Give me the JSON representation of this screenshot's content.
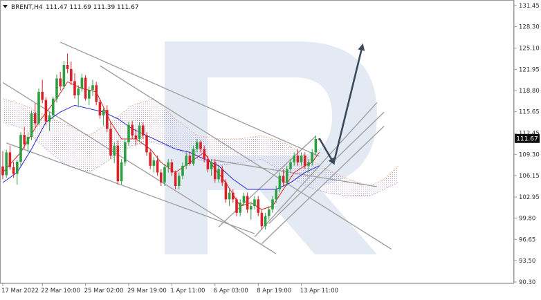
{
  "header": {
    "symbol": "BRENT,H4",
    "quote": "111.47 111.69 111.39 111.67"
  },
  "colors": {
    "bull_candle": "#2e9e43",
    "bear_candle": "#d8232a",
    "tenkan": "#e02020",
    "kijun": "#2424d8",
    "cloud_bear": "#f0a878",
    "cloud_bull": "#b8a0d0",
    "trendline": "#a0a0a0",
    "forecast_arrow": "#3a4a5c",
    "watermark": "#e3eaf4",
    "price_badge": "#0d0d0d"
  },
  "chart_data": {
    "type": "candlestick",
    "y_ticks": [
      "131.45",
      "128.30",
      "125.10",
      "121.95",
      "118.80",
      "115.65",
      "112.45",
      "109.30",
      "106.15",
      "102.95",
      "99.80",
      "96.65",
      "93.50",
      "90.30"
    ],
    "ylim": [
      90.3,
      131.45
    ],
    "x_ticks": [
      {
        "label": "17 Mar 2022",
        "bar": 0
      },
      {
        "label": "22 Mar 10:00",
        "bar": 11
      },
      {
        "label": "25 Mar 02:00",
        "bar": 23
      },
      {
        "label": "29 Mar 19:00",
        "bar": 35
      },
      {
        "label": "1 Apr 11:00",
        "bar": 47
      },
      {
        "label": "6 Apr 03:00",
        "bar": 59
      },
      {
        "label": "8 Apr 19:00",
        "bar": 71
      },
      {
        "label": "13 Apr 11:00",
        "bar": 83
      }
    ],
    "current_price": "111.67",
    "ohlc": [
      [
        107.5,
        109.8,
        105.6,
        106.2
      ],
      [
        106.2,
        110.0,
        105.8,
        109.6
      ],
      [
        109.6,
        110.6,
        107.0,
        107.4
      ],
      [
        107.4,
        108.2,
        105.8,
        106.4
      ],
      [
        106.4,
        108.5,
        104.8,
        108.2
      ],
      [
        108.2,
        112.6,
        107.6,
        112.2
      ],
      [
        112.2,
        113.4,
        110.2,
        110.8
      ],
      [
        110.8,
        112.4,
        109.6,
        111.9
      ],
      [
        111.9,
        115.8,
        111.4,
        115.4
      ],
      [
        115.4,
        116.9,
        113.4,
        113.9
      ],
      [
        113.9,
        119.1,
        113.6,
        118.6
      ],
      [
        118.6,
        120.4,
        116.9,
        117.4
      ],
      [
        117.4,
        117.8,
        113.6,
        114.2
      ],
      [
        114.2,
        115.6,
        112.8,
        115.1
      ],
      [
        115.1,
        117.9,
        114.6,
        117.6
      ],
      [
        117.6,
        121.2,
        117.0,
        120.6
      ],
      [
        120.6,
        121.6,
        118.8,
        119.4
      ],
      [
        119.4,
        123.2,
        119.0,
        122.6
      ],
      [
        122.6,
        124.3,
        121.4,
        122.0
      ],
      [
        122.0,
        123.1,
        119.6,
        120.2
      ],
      [
        120.2,
        121.4,
        117.6,
        118.1
      ],
      [
        118.1,
        119.6,
        116.4,
        119.1
      ],
      [
        119.1,
        121.3,
        118.6,
        120.7
      ],
      [
        120.7,
        121.1,
        117.3,
        117.6
      ],
      [
        117.6,
        119.4,
        116.6,
        118.9
      ],
      [
        118.9,
        120.4,
        118.0,
        119.6
      ],
      [
        119.6,
        120.1,
        116.6,
        117.1
      ],
      [
        117.1,
        117.6,
        114.6,
        115.1
      ],
      [
        115.1,
        116.2,
        113.6,
        115.9
      ],
      [
        115.9,
        116.6,
        112.6,
        113.1
      ],
      [
        113.1,
        114.1,
        108.6,
        109.1
      ],
      [
        109.1,
        111.1,
        108.0,
        110.6
      ],
      [
        110.6,
        111.4,
        104.8,
        105.3
      ],
      [
        105.3,
        108.6,
        104.8,
        108.1
      ],
      [
        108.1,
        111.6,
        107.6,
        111.1
      ],
      [
        111.1,
        114.2,
        110.6,
        113.7
      ],
      [
        113.7,
        114.3,
        111.6,
        112.1
      ],
      [
        112.1,
        113.1,
        110.6,
        111.6
      ],
      [
        111.6,
        114.1,
        111.1,
        113.6
      ],
      [
        113.6,
        114.1,
        111.6,
        112.1
      ],
      [
        112.1,
        112.6,
        109.1,
        109.6
      ],
      [
        109.6,
        110.1,
        107.1,
        107.6
      ],
      [
        107.6,
        108.9,
        106.6,
        108.4
      ],
      [
        108.4,
        109.1,
        106.1,
        106.6
      ],
      [
        106.6,
        107.1,
        104.6,
        105.1
      ],
      [
        105.1,
        107.9,
        104.6,
        107.4
      ],
      [
        107.4,
        108.6,
        106.6,
        108.1
      ],
      [
        108.1,
        108.6,
        106.1,
        106.6
      ],
      [
        106.6,
        106.9,
        104.1,
        104.6
      ],
      [
        104.6,
        106.6,
        104.1,
        106.1
      ],
      [
        106.1,
        108.1,
        105.6,
        107.6
      ],
      [
        107.6,
        109.6,
        107.1,
        109.1
      ],
      [
        109.1,
        109.6,
        107.6,
        107.9
      ],
      [
        107.9,
        110.6,
        107.6,
        110.1
      ],
      [
        110.1,
        111.6,
        109.6,
        111.1
      ],
      [
        111.1,
        111.4,
        109.6,
        110.1
      ],
      [
        110.1,
        110.6,
        108.1,
        108.6
      ],
      [
        108.6,
        109.1,
        106.6,
        107.1
      ],
      [
        107.1,
        108.6,
        106.1,
        108.1
      ],
      [
        108.1,
        108.6,
        105.1,
        105.6
      ],
      [
        105.6,
        107.6,
        105.1,
        107.1
      ],
      [
        107.1,
        107.6,
        104.6,
        105.1
      ],
      [
        105.1,
        105.6,
        102.1,
        102.6
      ],
      [
        102.6,
        104.1,
        101.6,
        103.6
      ],
      [
        103.6,
        104.1,
        102.1,
        102.6
      ],
      [
        102.6,
        102.9,
        100.1,
        100.6
      ],
      [
        100.6,
        102.6,
        100.1,
        102.1
      ],
      [
        102.1,
        103.6,
        101.6,
        103.1
      ],
      [
        103.1,
        103.6,
        100.6,
        101.1
      ],
      [
        101.1,
        102.1,
        99.6,
        101.6
      ],
      [
        101.6,
        103.1,
        101.1,
        102.6
      ],
      [
        102.6,
        103.1,
        100.1,
        100.6
      ],
      [
        100.6,
        101.1,
        98.1,
        98.6
      ],
      [
        98.6,
        100.6,
        98.1,
        100.1
      ],
      [
        100.1,
        101.6,
        99.6,
        101.1
      ],
      [
        101.1,
        103.1,
        100.6,
        102.6
      ],
      [
        102.6,
        104.6,
        102.1,
        104.1
      ],
      [
        104.1,
        106.6,
        103.6,
        106.1
      ],
      [
        106.1,
        107.1,
        104.6,
        105.1
      ],
      [
        105.1,
        107.6,
        104.6,
        107.1
      ],
      [
        107.1,
        108.6,
        106.6,
        108.1
      ],
      [
        108.1,
        109.6,
        107.6,
        109.1
      ],
      [
        109.1,
        110.1,
        107.6,
        108.1
      ],
      [
        108.1,
        109.6,
        107.6,
        109.1
      ],
      [
        109.1,
        109.6,
        107.1,
        107.6
      ],
      [
        107.6,
        108.6,
        106.6,
        108.1
      ],
      [
        108.1,
        110.1,
        107.6,
        109.6
      ],
      [
        109.6,
        112.1,
        109.1,
        111.6
      ],
      [
        111.47,
        111.69,
        111.39,
        111.67
      ]
    ],
    "tenkan": [
      [
        0,
        106.6
      ],
      [
        5,
        109.6
      ],
      [
        10,
        114.1
      ],
      [
        15,
        117.6
      ],
      [
        18,
        120.1
      ],
      [
        22,
        119.1
      ],
      [
        26,
        118.6
      ],
      [
        30,
        114.1
      ],
      [
        33,
        111.6
      ],
      [
        37,
        111.6
      ],
      [
        41,
        110.1
      ],
      [
        44,
        108.1
      ],
      [
        48,
        106.6
      ],
      [
        52,
        108.1
      ],
      [
        56,
        109.6
      ],
      [
        59,
        107.1
      ],
      [
        62,
        105.1
      ],
      [
        66,
        101.6
      ],
      [
        69,
        102.1
      ],
      [
        72,
        101.1
      ],
      [
        75,
        101.6
      ],
      [
        78,
        104.1
      ],
      [
        81,
        106.6
      ],
      [
        84,
        107.6
      ],
      [
        86,
        108.1
      ],
      [
        88,
        109.6
      ]
    ],
    "kijun": [
      [
        0,
        105.1
      ],
      [
        4,
        106.6
      ],
      [
        8,
        110.1
      ],
      [
        12,
        114.1
      ],
      [
        16,
        115.6
      ],
      [
        20,
        116.6
      ],
      [
        24,
        116.1
      ],
      [
        28,
        115.6
      ],
      [
        32,
        114.6
      ],
      [
        36,
        113.1
      ],
      [
        40,
        112.1
      ],
      [
        44,
        111.1
      ],
      [
        48,
        110.1
      ],
      [
        52,
        109.6
      ],
      [
        56,
        108.6
      ],
      [
        60,
        107.6
      ],
      [
        64,
        105.6
      ],
      [
        68,
        104.1
      ],
      [
        72,
        104.1
      ],
      [
        76,
        104.1
      ],
      [
        80,
        105.1
      ],
      [
        84,
        106.6
      ],
      [
        88,
        107.6
      ]
    ],
    "cloud_span_a": [
      [
        0,
        117.6
      ],
      [
        6,
        116.6
      ],
      [
        12,
        115.1
      ],
      [
        18,
        113.6
      ],
      [
        24,
        112.1
      ],
      [
        30,
        114.1
      ],
      [
        36,
        116.6
      ],
      [
        42,
        117.6
      ],
      [
        48,
        114.6
      ],
      [
        54,
        112.1
      ],
      [
        60,
        111.6
      ],
      [
        66,
        111.6
      ],
      [
        72,
        112.1
      ],
      [
        78,
        111.1
      ],
      [
        84,
        109.1
      ],
      [
        90,
        107.1
      ],
      [
        96,
        105.6
      ],
      [
        102,
        104.6
      ],
      [
        106,
        105.6
      ],
      [
        110,
        107.6
      ]
    ],
    "cloud_span_b": [
      [
        0,
        114.1
      ],
      [
        6,
        113.1
      ],
      [
        12,
        110.1
      ],
      [
        18,
        107.6
      ],
      [
        24,
        106.6
      ],
      [
        30,
        108.6
      ],
      [
        36,
        110.6
      ],
      [
        42,
        111.1
      ],
      [
        48,
        110.1
      ],
      [
        54,
        108.6
      ],
      [
        60,
        107.6
      ],
      [
        66,
        108.1
      ],
      [
        72,
        108.6
      ],
      [
        78,
        106.6
      ],
      [
        84,
        104.6
      ],
      [
        90,
        103.6
      ],
      [
        96,
        103.1
      ],
      [
        102,
        103.1
      ],
      [
        106,
        104.1
      ],
      [
        110,
        105.1
      ]
    ],
    "trendlines": [
      [
        [
          0,
          120.0
        ],
        [
          76,
          94.5
        ]
      ],
      [
        [
          1,
          111.0
        ],
        [
          70,
          97.5
        ]
      ],
      [
        [
          16,
          126.0
        ],
        [
          88,
          109.0
        ]
      ],
      [
        [
          27,
          122.5
        ],
        [
          108,
          95.2
        ]
      ],
      [
        [
          58,
          108.5
        ],
        [
          104,
          104.5
        ]
      ],
      [
        [
          60,
          98.5
        ],
        [
          87,
          112.0
        ]
      ],
      [
        [
          70,
          97.0
        ],
        [
          104,
          117.0
        ]
      ],
      [
        [
          72,
          96.0
        ],
        [
          106,
          113.5
        ]
      ],
      [
        [
          74,
          99.0
        ],
        [
          106,
          115.6
        ]
      ]
    ],
    "forecast_path": [
      [
        88,
        111.67
      ],
      [
        92,
        108.0
      ],
      [
        100,
        125.5
      ]
    ]
  }
}
